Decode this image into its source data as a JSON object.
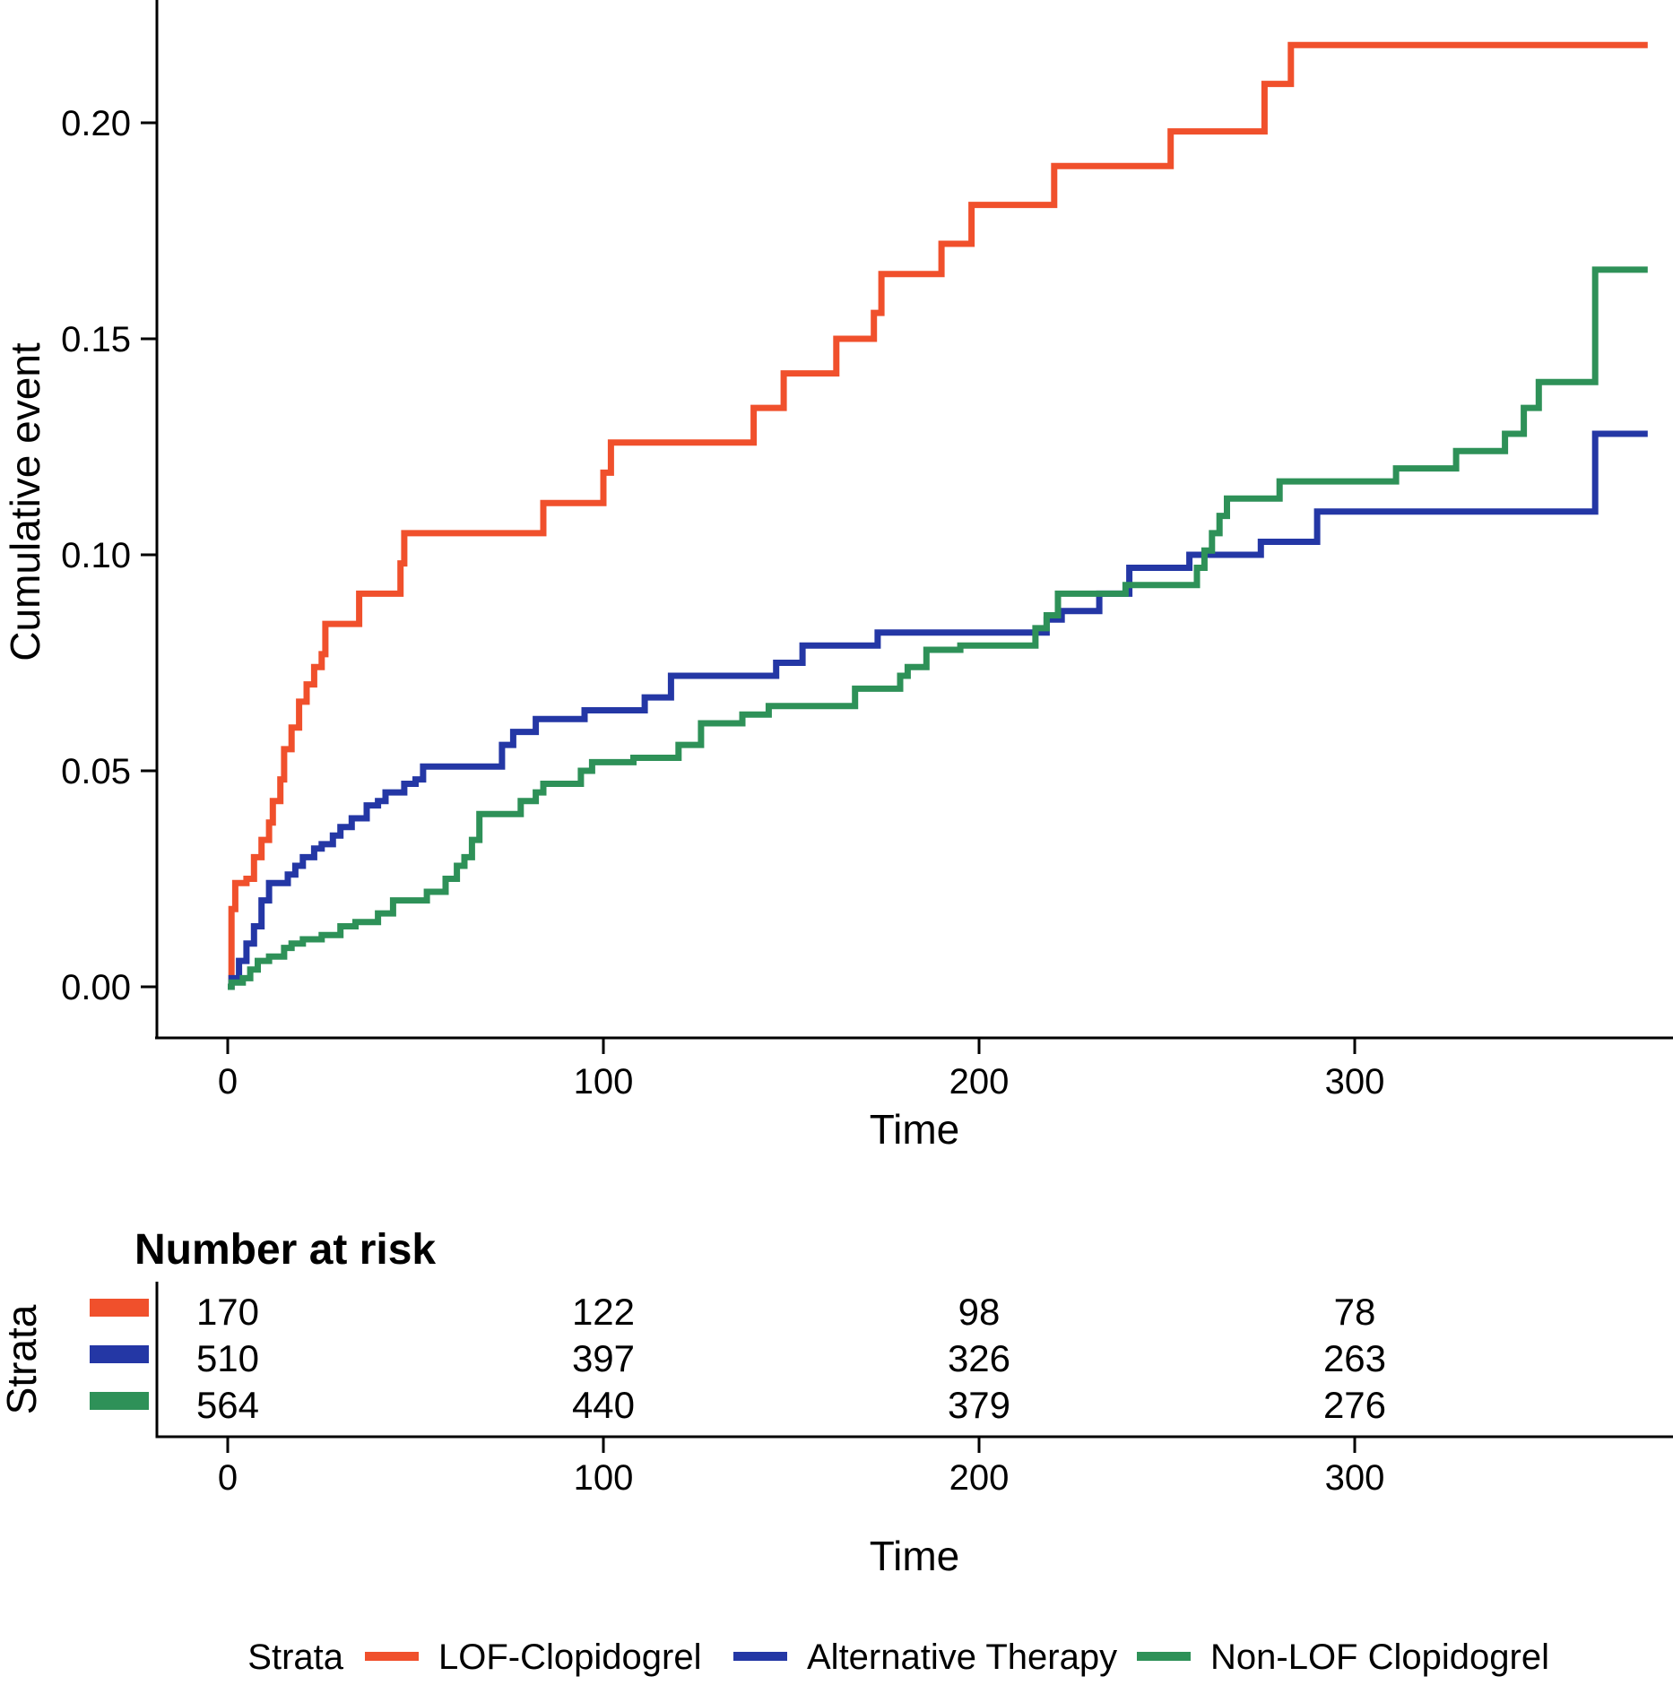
{
  "chart_data": {
    "type": "line",
    "subtype": "cumulative-incidence-step-curves",
    "title": "",
    "xlabel": "Time",
    "ylabel": "Cumulative event",
    "xlim": [
      0,
      378
    ],
    "ylim": [
      0,
      0.225
    ],
    "grid": "off",
    "x_tick_labels": [
      "0",
      "100",
      "200",
      "300"
    ],
    "y_tick_labels": [
      "0.00",
      "0.05",
      "0.10",
      "0.15",
      "0.20"
    ],
    "legend_title": "Strata",
    "legend_position": "bottom",
    "series": [
      {
        "name": "LOF-Clopidogrel",
        "color": "#F0502C",
        "points": [
          [
            0,
            0
          ],
          [
            1,
            0.018
          ],
          [
            2,
            0.024
          ],
          [
            5,
            0.025
          ],
          [
            7,
            0.03
          ],
          [
            9,
            0.034
          ],
          [
            11,
            0.038
          ],
          [
            12,
            0.043
          ],
          [
            14,
            0.048
          ],
          [
            15,
            0.055
          ],
          [
            17,
            0.06
          ],
          [
            19,
            0.066
          ],
          [
            21,
            0.07
          ],
          [
            23,
            0.074
          ],
          [
            25,
            0.077
          ],
          [
            26,
            0.084
          ],
          [
            35,
            0.091
          ],
          [
            46,
            0.098
          ],
          [
            47,
            0.105
          ],
          [
            84,
            0.112
          ],
          [
            100,
            0.119
          ],
          [
            102,
            0.126
          ],
          [
            140,
            0.134
          ],
          [
            148,
            0.142
          ],
          [
            162,
            0.15
          ],
          [
            172,
            0.156
          ],
          [
            174,
            0.165
          ],
          [
            190,
            0.172
          ],
          [
            198,
            0.181
          ],
          [
            220,
            0.19
          ],
          [
            251,
            0.198
          ],
          [
            276,
            0.209
          ],
          [
            283,
            0.218
          ],
          [
            378,
            0.218
          ]
        ]
      },
      {
        "name": "Alternative Therapy",
        "color": "#2437A5",
        "points": [
          [
            0,
            0
          ],
          [
            1,
            0.002
          ],
          [
            3,
            0.006
          ],
          [
            5,
            0.01
          ],
          [
            7,
            0.014
          ],
          [
            9,
            0.02
          ],
          [
            11,
            0.024
          ],
          [
            16,
            0.026
          ],
          [
            18,
            0.028
          ],
          [
            20,
            0.03
          ],
          [
            23,
            0.032
          ],
          [
            25,
            0.033
          ],
          [
            28,
            0.035
          ],
          [
            30,
            0.037
          ],
          [
            33,
            0.039
          ],
          [
            37,
            0.042
          ],
          [
            40,
            0.043
          ],
          [
            42,
            0.045
          ],
          [
            47,
            0.047
          ],
          [
            50,
            0.048
          ],
          [
            52,
            0.051
          ],
          [
            73,
            0.056
          ],
          [
            76,
            0.059
          ],
          [
            82,
            0.062
          ],
          [
            95,
            0.064
          ],
          [
            111,
            0.067
          ],
          [
            118,
            0.072
          ],
          [
            146,
            0.075
          ],
          [
            153,
            0.079
          ],
          [
            173,
            0.082
          ],
          [
            218,
            0.085
          ],
          [
            222,
            0.087
          ],
          [
            232,
            0.091
          ],
          [
            240,
            0.097
          ],
          [
            256,
            0.1
          ],
          [
            275,
            0.103
          ],
          [
            290,
            0.11
          ],
          [
            364,
            0.128
          ],
          [
            378,
            0.128
          ]
        ]
      },
      {
        "name": "Non-LOF Clopidogrel",
        "color": "#2E9158",
        "points": [
          [
            0,
            0
          ],
          [
            1,
            0.001
          ],
          [
            4,
            0.002
          ],
          [
            6,
            0.004
          ],
          [
            8,
            0.006
          ],
          [
            11,
            0.007
          ],
          [
            15,
            0.009
          ],
          [
            17,
            0.01
          ],
          [
            20,
            0.011
          ],
          [
            25,
            0.012
          ],
          [
            30,
            0.014
          ],
          [
            34,
            0.015
          ],
          [
            40,
            0.017
          ],
          [
            44,
            0.02
          ],
          [
            53,
            0.022
          ],
          [
            58,
            0.025
          ],
          [
            61,
            0.028
          ],
          [
            63,
            0.03
          ],
          [
            65,
            0.034
          ],
          [
            67,
            0.04
          ],
          [
            78,
            0.043
          ],
          [
            82,
            0.045
          ],
          [
            84,
            0.047
          ],
          [
            94,
            0.05
          ],
          [
            97,
            0.052
          ],
          [
            108,
            0.053
          ],
          [
            120,
            0.056
          ],
          [
            126,
            0.061
          ],
          [
            137,
            0.063
          ],
          [
            144,
            0.065
          ],
          [
            167,
            0.069
          ],
          [
            179,
            0.072
          ],
          [
            181,
            0.074
          ],
          [
            186,
            0.078
          ],
          [
            195,
            0.079
          ],
          [
            215,
            0.083
          ],
          [
            218,
            0.086
          ],
          [
            221,
            0.091
          ],
          [
            239,
            0.093
          ],
          [
            258,
            0.097
          ],
          [
            260,
            0.101
          ],
          [
            262,
            0.105
          ],
          [
            264,
            0.109
          ],
          [
            266,
            0.113
          ],
          [
            280,
            0.117
          ],
          [
            311,
            0.12
          ],
          [
            327,
            0.124
          ],
          [
            340,
            0.128
          ],
          [
            345,
            0.134
          ],
          [
            349,
            0.14
          ],
          [
            364,
            0.166
          ],
          [
            378,
            0.166
          ]
        ]
      }
    ]
  },
  "risk_table": {
    "title": "Number at risk",
    "ylabel": "Strata",
    "xlabel": "Time",
    "x_tick_labels": [
      "0",
      "100",
      "200",
      "300"
    ],
    "rows": [
      {
        "name": "LOF-Clopidogrel",
        "values": [
          "170",
          "122",
          "98",
          "78"
        ]
      },
      {
        "name": "Alternative Therapy",
        "values": [
          "510",
          "397",
          "326",
          "263"
        ]
      },
      {
        "name": "Non-LOF Clopidogrel",
        "values": [
          "564",
          "440",
          "379",
          "276"
        ]
      }
    ]
  }
}
